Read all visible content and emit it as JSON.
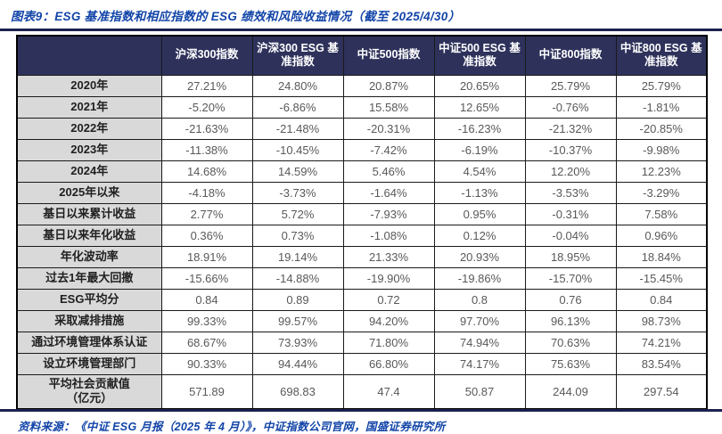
{
  "figure": {
    "title": "图表9：ESG 基准指数和相应指数的 ESG 绩效和风险收益情况（截至 2025/4/30）",
    "source": "资料来源：《中证 ESG 月报（2025 年 4 月）》，中证指数公司官网，国盛证券研究所"
  },
  "colors": {
    "header_bg": "#2E325B",
    "title_blue": "#1244A8",
    "rule_navy": "#1C2150",
    "label_bg": "#D9D9D9",
    "label_text": "#1F1F1F",
    "value_text": "#595959",
    "grid": "#1A1A1A"
  },
  "chart_data": {
    "type": "table",
    "columns": [
      "",
      "沪深300指数",
      "沪深300 ESG 基准指数",
      "中证500指数",
      "中证500 ESG 基准指数",
      "中证800指数",
      "中证800 ESG 基准指数"
    ],
    "rows": [
      {
        "label": "2020年",
        "values": [
          "27.21%",
          "24.80%",
          "20.87%",
          "20.65%",
          "25.79%",
          "25.79%"
        ]
      },
      {
        "label": "2021年",
        "values": [
          "-5.20%",
          "-6.86%",
          "15.58%",
          "12.65%",
          "-0.76%",
          "-1.81%"
        ]
      },
      {
        "label": "2022年",
        "values": [
          "-21.63%",
          "-21.48%",
          "-20.31%",
          "-16.23%",
          "-21.32%",
          "-20.85%"
        ]
      },
      {
        "label": "2023年",
        "values": [
          "-11.38%",
          "-10.45%",
          "-7.42%",
          "-6.19%",
          "-10.37%",
          "-9.98%"
        ]
      },
      {
        "label": "2024年",
        "values": [
          "14.68%",
          "14.59%",
          "5.46%",
          "4.54%",
          "12.20%",
          "12.23%"
        ]
      },
      {
        "label": "2025年以来",
        "values": [
          "-4.18%",
          "-3.73%",
          "-1.64%",
          "-1.13%",
          "-3.53%",
          "-3.29%"
        ]
      },
      {
        "label": "基日以来累计收益",
        "values": [
          "2.77%",
          "5.72%",
          "-7.93%",
          "0.95%",
          "-0.31%",
          "7.58%"
        ]
      },
      {
        "label": "基日以来年化收益",
        "values": [
          "0.36%",
          "0.73%",
          "-1.08%",
          "0.12%",
          "-0.04%",
          "0.96%"
        ]
      },
      {
        "label": "年化波动率",
        "values": [
          "18.91%",
          "19.14%",
          "21.33%",
          "20.93%",
          "18.95%",
          "18.84%"
        ]
      },
      {
        "label": "过去1年最大回撤",
        "values": [
          "-15.66%",
          "-14.88%",
          "-19.90%",
          "-19.86%",
          "-15.70%",
          "-15.45%"
        ]
      },
      {
        "label": "ESG平均分",
        "values": [
          "0.84",
          "0.89",
          "0.72",
          "0.8",
          "0.76",
          "0.84"
        ]
      },
      {
        "label": "采取减排措施",
        "values": [
          "99.33%",
          "99.57%",
          "94.20%",
          "97.70%",
          "96.13%",
          "98.73%"
        ]
      },
      {
        "label": "通过环境管理体系认证",
        "values": [
          "68.67%",
          "73.93%",
          "71.80%",
          "74.94%",
          "70.63%",
          "74.21%"
        ]
      },
      {
        "label": "设立环境管理部门",
        "values": [
          "90.33%",
          "94.44%",
          "66.80%",
          "74.17%",
          "75.63%",
          "83.54%"
        ]
      },
      {
        "label": "平均社会贡献值\n（亿元）",
        "values": [
          "571.89",
          "698.83",
          "47.4",
          "50.87",
          "244.09",
          "297.54"
        ]
      }
    ]
  }
}
